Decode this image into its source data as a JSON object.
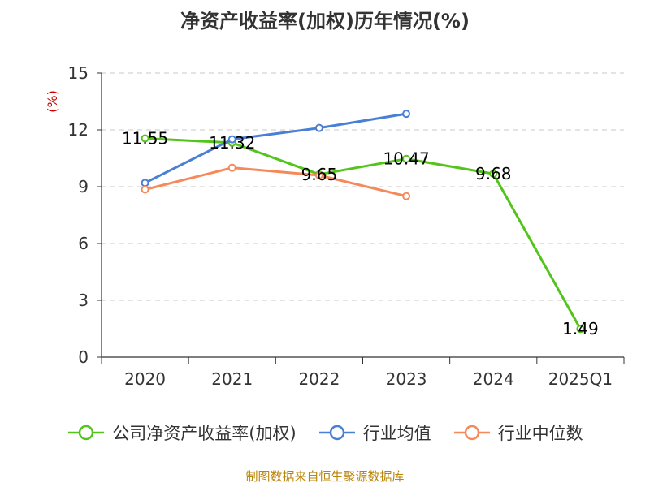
{
  "chart_data": {
    "type": "line",
    "title": "净资产收益率(加权)历年情况(%)",
    "ylabel": "(%)",
    "xlabel": "",
    "ylim": [
      0,
      15
    ],
    "yticks": [
      0,
      3,
      6,
      9,
      12,
      15
    ],
    "categories": [
      "2020",
      "2021",
      "2022",
      "2023",
      "2024",
      "2025Q1"
    ],
    "series": [
      {
        "name": "公司净资产收益率(加权)",
        "color": "#52c41a",
        "values": [
          11.55,
          11.32,
          9.65,
          10.47,
          9.68,
          1.49
        ],
        "labels": [
          "11.55",
          "11.32",
          "9.65",
          "10.47",
          "9.68",
          "1.49"
        ]
      },
      {
        "name": "行业均值",
        "color": "#4a7fd6",
        "values": [
          9.2,
          11.5,
          12.1,
          12.85,
          null,
          null
        ]
      },
      {
        "name": "行业中位数",
        "color": "#f5895a",
        "values": [
          8.85,
          10.0,
          9.6,
          8.5,
          null,
          null
        ]
      }
    ],
    "grid": true,
    "legend_position": "bottom"
  },
  "source": "制图数据来自恒生聚源数据库"
}
